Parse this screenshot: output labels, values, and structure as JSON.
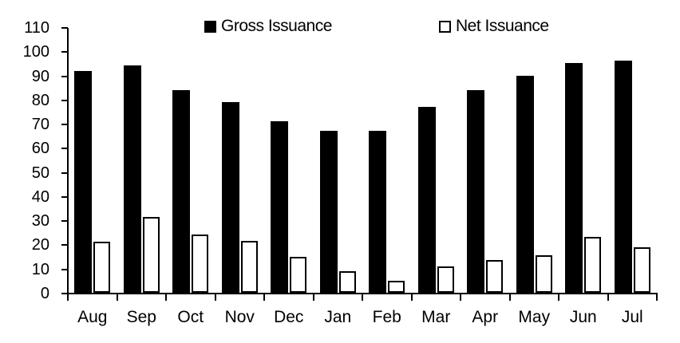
{
  "chart_data": {
    "type": "bar",
    "title": "",
    "xlabel": "",
    "ylabel": "",
    "categories": [
      "Aug",
      "Sep",
      "Oct",
      "Nov",
      "Dec",
      "Jan",
      "Feb",
      "Mar",
      "Apr",
      "May",
      "Jun",
      "Jul"
    ],
    "series": [
      {
        "name": "Gross Issuance",
        "marker": "filled-black-square",
        "color": "#000000",
        "values": [
          92,
          94,
          84,
          79,
          71,
          67,
          67,
          77,
          84,
          90,
          95,
          96
        ]
      },
      {
        "name": "Net Issuance",
        "marker": "hollow-white-square",
        "color": "#ffffff",
        "border_color": "#000000",
        "values": [
          21,
          31.5,
          24,
          21.5,
          15,
          9,
          5,
          11,
          13.5,
          15.5,
          23,
          19
        ]
      }
    ],
    "ylim": [
      0,
      110
    ],
    "ytick_step": 10,
    "ytick_labels_top_to_bottom": [
      "110",
      "100",
      "90",
      "80",
      "70",
      "60",
      "50",
      "40",
      "30",
      "20",
      "10",
      "0"
    ],
    "grid": "off",
    "legend_position": "top-center",
    "axis_color": "#000000",
    "background_color": "#ffffff"
  }
}
